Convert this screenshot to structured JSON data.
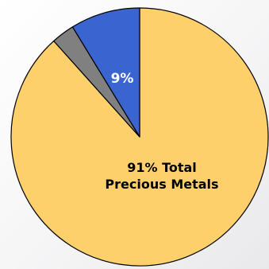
{
  "chart_data": {
    "type": "pie",
    "title": "",
    "slices": [
      {
        "value": 91,
        "color": "#fdd06b",
        "label_lines": [
          "91% Total",
          "Precious Metals"
        ],
        "label_color": "#000000"
      },
      {
        "value": 3,
        "color": "#808080",
        "label_lines": [],
        "label_color": "#000000"
      },
      {
        "value": 9,
        "color": "#3a64d0",
        "label_lines": [
          "9%"
        ],
        "label_color": "#ffffff"
      }
    ],
    "start_angle_deg": 0,
    "direction": "clockwise",
    "legend": "none"
  }
}
